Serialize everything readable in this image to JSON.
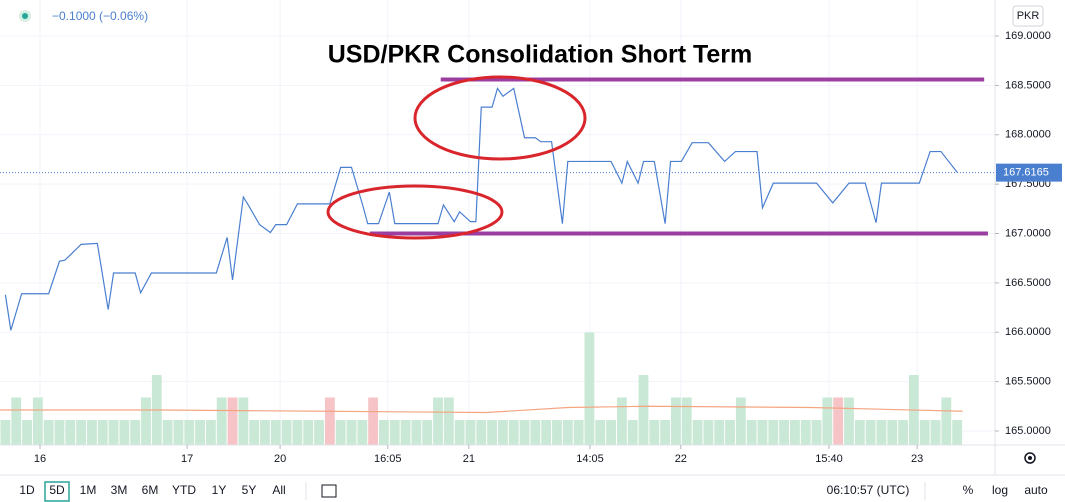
{
  "chart_data": {
    "type": "line",
    "title": "USD/PKR Consolidation Short Term",
    "change": "−0.1000 (−0.06%)",
    "currency": "PKR",
    "color": "#4a7fd0",
    "x": [
      1,
      2,
      4,
      9,
      11,
      12,
      15,
      18,
      20,
      21,
      25,
      26,
      28,
      40,
      42,
      43,
      45,
      46,
      48,
      50,
      51,
      53,
      55,
      61,
      63,
      65,
      67,
      68,
      70,
      72,
      73,
      81,
      82,
      84,
      85,
      87,
      88,
      89,
      91,
      92,
      93,
      95,
      97,
      99,
      100,
      102,
      104,
      105,
      113,
      115,
      116,
      118,
      119,
      121,
      123,
      124,
      126,
      128,
      131,
      134,
      136,
      140,
      141,
      143,
      151,
      154,
      157,
      160,
      162,
      163,
      170,
      172,
      174,
      177
    ],
    "values": [
      166.38,
      166.02,
      166.39,
      166.39,
      166.72,
      166.73,
      166.89,
      166.9,
      166.23,
      166.6,
      166.6,
      166.4,
      166.6,
      166.6,
      166.96,
      166.53,
      167.37,
      167.28,
      167.09,
      167.01,
      167.09,
      167.09,
      167.3,
      167.3,
      167.67,
      167.67,
      167.3,
      167.1,
      167.1,
      167.42,
      167.1,
      167.1,
      167.29,
      167.12,
      167.22,
      167.12,
      167.12,
      168.28,
      168.28,
      168.47,
      168.39,
      168.47,
      167.97,
      167.97,
      167.93,
      167.93,
      167.1,
      167.73,
      167.73,
      167.51,
      167.73,
      167.51,
      167.73,
      167.73,
      167.1,
      167.73,
      167.73,
      167.92,
      167.92,
      167.73,
      167.83,
      167.83,
      167.26,
      167.51,
      167.51,
      167.31,
      167.51,
      167.51,
      167.11,
      167.51,
      167.51,
      167.83,
      167.83,
      167.62
    ],
    "xlim": [
      0,
      184
    ],
    "xticks": [
      {
        "value": 7.4,
        "label": "16"
      },
      {
        "value": 34.6,
        "label": "17"
      },
      {
        "value": 51.8,
        "label": "20"
      },
      {
        "value": 71.7,
        "label": "16:05"
      },
      {
        "value": 86.7,
        "label": "21"
      },
      {
        "value": 109.1,
        "label": "14:05"
      },
      {
        "value": 125.9,
        "label": "22"
      },
      {
        "value": 153.3,
        "label": "15:40"
      },
      {
        "value": 169.6,
        "label": "23"
      }
    ],
    "ylim": [
      164.858,
      169.365
    ],
    "yticks": [
      {
        "value": 165,
        "label": "165.0000"
      },
      {
        "value": 165.5,
        "label": "165.5000"
      },
      {
        "value": 166,
        "label": "166.0000"
      },
      {
        "value": 166.5,
        "label": "166.5000"
      },
      {
        "value": 167,
        "label": "167.0000"
      },
      {
        "value": 167.5,
        "label": "167.5000"
      },
      {
        "value": 168,
        "label": "168.0000"
      },
      {
        "value": 168.5,
        "label": "168.5000"
      },
      {
        "value": 169,
        "label": "169.0000"
      }
    ],
    "grid": true,
    "last_price": 167.6165,
    "levels": [
      {
        "value": 168.56,
        "x": [
          81.5,
          182
        ],
        "color": "#9b3ea0"
      },
      {
        "value": 167.0,
        "x": [
          68.4,
          182.7
        ],
        "color": "#9b3ea0"
      }
    ],
    "volume": {
      "ylim": [
        0,
        17.8
      ],
      "up_color": "#c9e8d5",
      "down_color": "#f6c3c6",
      "up": [
        1,
        1.9,
        1,
        1.9,
        1,
        1,
        1,
        1,
        1,
        1,
        1,
        1,
        1,
        1.9,
        2.8,
        1,
        1,
        1,
        1,
        1,
        1.9,
        null,
        1.9,
        1,
        1,
        1,
        1,
        1,
        1,
        1,
        null,
        1,
        1,
        1,
        null,
        1,
        1,
        1,
        1,
        1,
        1.9,
        1.9,
        1,
        1,
        1,
        1,
        1,
        1,
        1,
        1,
        1,
        1,
        1,
        1,
        4.5,
        1,
        1,
        1.9,
        1,
        2.8,
        1,
        1,
        1.9,
        1.9,
        1,
        1,
        1,
        1,
        1.9,
        1,
        1,
        1,
        1,
        1,
        1,
        1,
        1.9,
        null,
        1.9,
        1,
        1,
        1,
        1,
        1,
        2.8,
        1,
        1,
        1.9,
        1
      ],
      "down": [
        null,
        null,
        null,
        null,
        null,
        null,
        null,
        null,
        null,
        null,
        null,
        null,
        null,
        null,
        null,
        null,
        null,
        null,
        null,
        null,
        null,
        1.9,
        null,
        null,
        null,
        null,
        null,
        null,
        null,
        null,
        1.9,
        null,
        null,
        null,
        1.9,
        null,
        null,
        null,
        null,
        null,
        null,
        null,
        null,
        null,
        null,
        null,
        null,
        null,
        null,
        null,
        null,
        null,
        null,
        null,
        null,
        null,
        null,
        null,
        null,
        null,
        null,
        null,
        null,
        null,
        null,
        null,
        null,
        null,
        null,
        null,
        null,
        null,
        null,
        null,
        null,
        null,
        null,
        1.9,
        null,
        null,
        null,
        null,
        null,
        null,
        null,
        null,
        null,
        null,
        null
      ],
      "ma_x": [
        0,
        30,
        60,
        90,
        105,
        120,
        150,
        178
      ],
      "ma_values": [
        1.4,
        1.4,
        1.35,
        1.3,
        1.5,
        1.55,
        1.5,
        1.35
      ],
      "ma_color": "#f4a582"
    },
    "ranges": [
      "1D",
      "5D",
      "1M",
      "3M",
      "6M",
      "YTD",
      "1Y",
      "5Y",
      "All"
    ],
    "clock": "06:10:57 (UTC)",
    "scale_options": [
      "%",
      "log",
      "auto"
    ]
  }
}
